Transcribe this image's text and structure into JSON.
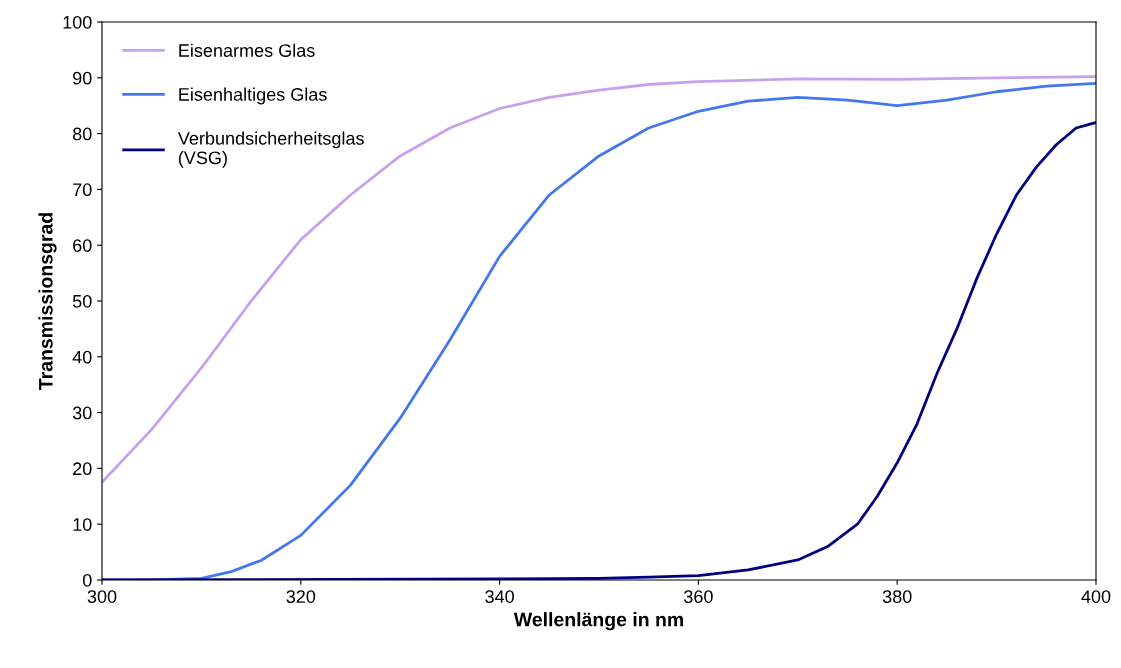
{
  "chart_data": {
    "type": "line",
    "xlabel": "Wellenlänge in nm",
    "ylabel": "Transmissionsgrad",
    "xlim": [
      300,
      400
    ],
    "xticks": [
      300,
      320,
      340,
      360,
      380,
      400
    ],
    "ylim": [
      0,
      100
    ],
    "yticks": [
      0,
      10,
      20,
      30,
      40,
      50,
      60,
      70,
      80,
      90,
      100
    ],
    "grid": false,
    "legend": "top left",
    "marker": "none",
    "line_style": "solid",
    "series": [
      {
        "name": "Eisenarmes Glas",
        "color": "#c8a0f0",
        "x": [
          300,
          305,
          310,
          315,
          320,
          325,
          330,
          335,
          340,
          345,
          350,
          355,
          360,
          370,
          380,
          390,
          400
        ],
        "values": [
          17.5,
          27,
          38,
          50,
          61,
          69,
          76,
          81,
          84.5,
          86.5,
          87.8,
          88.8,
          89.3,
          89.8,
          89.7,
          90,
          90.2
        ]
      },
      {
        "name": "Eisenhaltiges Glas",
        "color": "#4477ee",
        "x": [
          300,
          305,
          310,
          313,
          316,
          320,
          325,
          330,
          335,
          340,
          345,
          350,
          355,
          360,
          365,
          370,
          375,
          380,
          385,
          390,
          395,
          400
        ],
        "values": [
          0,
          0,
          0.3,
          1.5,
          3.5,
          8,
          17,
          29,
          43,
          58,
          69,
          76,
          81,
          84,
          85.8,
          86.5,
          86,
          85,
          86,
          87.5,
          88.5,
          89
        ]
      },
      {
        "name": "Verbundsicherheitsglas\n(VSG)",
        "color": "#000080",
        "x": [
          300,
          340,
          350,
          355,
          360,
          365,
          370,
          373,
          376,
          378,
          380,
          382,
          384,
          386,
          388,
          390,
          392,
          394,
          396,
          398,
          400
        ],
        "values": [
          0,
          0.2,
          0.3,
          0.5,
          0.8,
          1.8,
          3.6,
          6,
          10,
          15,
          21,
          28,
          37,
          45,
          54,
          62,
          69,
          74,
          78,
          81,
          82
        ]
      }
    ]
  }
}
